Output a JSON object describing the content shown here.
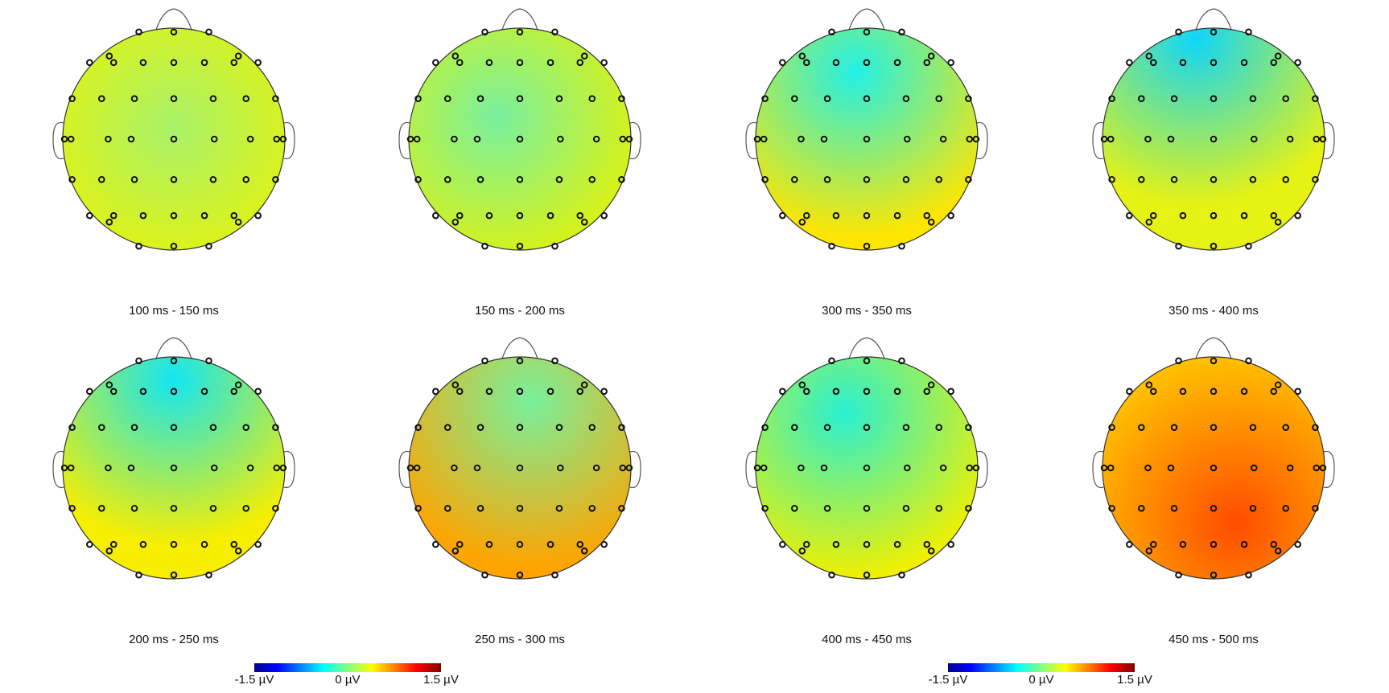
{
  "panels": [
    {
      "label": "100 ms - 150 ms"
    },
    {
      "label": "150 ms - 200 ms"
    },
    {
      "label": "300 ms - 350 ms"
    },
    {
      "label": "350 ms - 400 ms"
    },
    {
      "label": "200 ms - 250 ms"
    },
    {
      "label": "250 ms - 300 ms"
    },
    {
      "label": "400 ms - 450 ms"
    },
    {
      "label": "450 ms - 500 ms"
    }
  ],
  "colorbars": [
    {
      "ticks": [
        "-1.5 µV",
        "0 µV",
        "1.5 µV"
      ]
    },
    {
      "ticks": [
        "-1.5 µV",
        "0 µV",
        "1.5 µV"
      ]
    }
  ]
}
